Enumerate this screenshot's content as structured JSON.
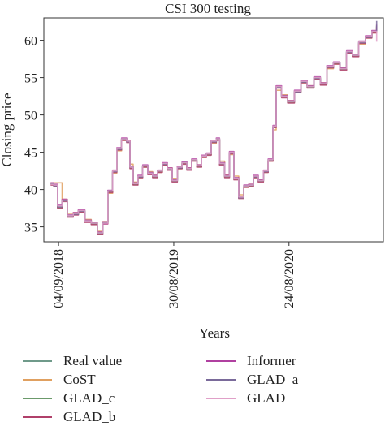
{
  "chart_data": {
    "type": "line",
    "title": "CSI 300 testing",
    "xlabel": "Years",
    "ylabel": "Closing price",
    "ylim": [
      33,
      63
    ],
    "yticks": [
      35,
      40,
      45,
      50,
      55,
      60
    ],
    "xlim": [
      "2018-07-20",
      "2021-06-15"
    ],
    "xticks": [
      "2018-09-04",
      "2019-08-30",
      "2020-08-24"
    ],
    "xtick_labels": [
      "04/09/2018",
      "30/08/2019",
      "24/08/2020"
    ],
    "grid": false,
    "legend_position": "bottom",
    "x": [
      "2018-08-10",
      "2018-08-20",
      "2018-09-01",
      "2018-09-15",
      "2018-10-01",
      "2018-10-20",
      "2018-11-05",
      "2018-11-25",
      "2018-12-15",
      "2019-01-03",
      "2019-01-20",
      "2019-02-05",
      "2019-02-20",
      "2019-03-05",
      "2019-03-20",
      "2019-04-05",
      "2019-04-15",
      "2019-04-25",
      "2019-05-10",
      "2019-05-25",
      "2019-06-10",
      "2019-06-25",
      "2019-07-10",
      "2019-07-25",
      "2019-08-10",
      "2019-08-25",
      "2019-09-10",
      "2019-09-25",
      "2019-10-10",
      "2019-10-25",
      "2019-11-10",
      "2019-11-25",
      "2019-12-10",
      "2019-12-25",
      "2020-01-10",
      "2020-01-20",
      "2020-02-05",
      "2020-02-20",
      "2020-03-05",
      "2020-03-20",
      "2020-04-05",
      "2020-04-20",
      "2020-05-05",
      "2020-05-20",
      "2020-06-05",
      "2020-06-20",
      "2020-07-05",
      "2020-07-15",
      "2020-08-01",
      "2020-08-20",
      "2020-09-10",
      "2020-09-30",
      "2020-10-20",
      "2020-11-10",
      "2020-11-30",
      "2020-12-20",
      "2021-01-10",
      "2021-01-30",
      "2021-02-20",
      "2021-03-10",
      "2021-03-30",
      "2021-04-20",
      "2021-05-10",
      "2021-05-25"
    ],
    "series": [
      {
        "name": "Real value",
        "color": "#6f9a8a",
        "values": [
          40.8,
          40.6,
          37.8,
          38.6,
          36.5,
          36.8,
          37.2,
          35.8,
          35.5,
          34.2,
          35.5,
          39.8,
          42.5,
          45.5,
          46.8,
          46.5,
          43.0,
          40.8,
          41.8,
          43.2,
          42.2,
          41.8,
          42.5,
          43.5,
          42.8,
          41.2,
          43.0,
          43.6,
          42.8,
          44.0,
          43.2,
          44.5,
          44.8,
          46.5,
          46.8,
          43.5,
          41.8,
          45.0,
          41.5,
          39.0,
          40.5,
          40.6,
          41.8,
          41.2,
          42.5,
          44.0,
          48.5,
          53.8,
          52.5,
          51.8,
          53.2,
          54.5,
          53.8,
          55.0,
          54.2,
          56.5,
          57.0,
          56.2,
          58.5,
          58.0,
          59.8,
          60.5,
          61.2,
          62.0
        ]
      },
      {
        "name": "CoST",
        "color": "#e0a060",
        "values": [
          40.9,
          40.9,
          40.9,
          38.7,
          36.8,
          36.9,
          37.0,
          36.0,
          35.6,
          34.4,
          35.4,
          39.5,
          42.2,
          45.2,
          46.6,
          46.6,
          43.4,
          41.0,
          41.6,
          43.0,
          42.4,
          41.9,
          42.3,
          43.3,
          42.9,
          41.5,
          42.8,
          43.5,
          42.9,
          43.9,
          43.3,
          44.3,
          44.7,
          46.2,
          46.7,
          43.8,
          42.0,
          44.7,
          41.8,
          39.3,
          40.3,
          40.7,
          41.6,
          41.3,
          42.3,
          43.8,
          48.0,
          53.3,
          52.7,
          51.9,
          53.0,
          54.3,
          53.9,
          54.8,
          54.3,
          56.2,
          56.8,
          56.3,
          58.2,
          58.1,
          59.5,
          60.3,
          61.0,
          61.7
        ]
      },
      {
        "name": "GLAD_c",
        "color": "#6b9a6b",
        "values": [
          40.7,
          40.5,
          37.6,
          38.5,
          36.4,
          36.7,
          37.1,
          35.7,
          35.4,
          34.1,
          35.6,
          39.7,
          42.4,
          45.4,
          46.7,
          46.4,
          42.9,
          40.7,
          41.7,
          43.1,
          42.1,
          41.7,
          42.4,
          43.4,
          42.7,
          41.1,
          42.9,
          43.5,
          42.7,
          43.9,
          43.1,
          44.4,
          44.7,
          46.4,
          46.7,
          43.4,
          41.7,
          44.9,
          41.4,
          38.9,
          40.4,
          40.5,
          41.7,
          41.1,
          42.4,
          43.9,
          48.4,
          53.7,
          52.4,
          51.7,
          53.1,
          54.4,
          53.7,
          54.9,
          54.1,
          56.4,
          56.9,
          56.1,
          58.4,
          57.9,
          59.7,
          60.4,
          61.1,
          61.9
        ]
      },
      {
        "name": "GLAD_b",
        "color": "#b0406a",
        "values": [
          40.6,
          40.4,
          37.5,
          38.4,
          36.3,
          36.6,
          37.0,
          35.6,
          35.3,
          34.0,
          35.7,
          39.6,
          42.3,
          45.3,
          46.6,
          46.3,
          42.8,
          40.6,
          41.6,
          43.0,
          42.0,
          41.6,
          42.3,
          43.3,
          42.6,
          41.0,
          42.8,
          43.4,
          42.6,
          43.8,
          43.0,
          44.3,
          44.6,
          46.3,
          46.6,
          43.3,
          41.6,
          44.8,
          41.3,
          38.8,
          40.3,
          40.4,
          41.6,
          41.0,
          42.3,
          43.8,
          48.3,
          53.6,
          52.3,
          51.6,
          53.0,
          54.3,
          53.6,
          54.8,
          54.0,
          56.3,
          56.8,
          56.0,
          58.3,
          57.8,
          59.6,
          60.3,
          61.0,
          61.8
        ]
      },
      {
        "name": "Informer",
        "color": "#b040a0",
        "values": [
          40.9,
          40.7,
          37.9,
          38.7,
          36.6,
          36.9,
          37.3,
          35.9,
          35.6,
          34.3,
          35.4,
          39.9,
          42.6,
          45.6,
          46.9,
          46.6,
          43.1,
          40.9,
          41.9,
          43.3,
          42.3,
          41.9,
          42.6,
          43.6,
          42.9,
          41.3,
          43.1,
          43.7,
          42.9,
          44.1,
          43.3,
          44.6,
          44.9,
          46.6,
          46.9,
          43.6,
          41.9,
          45.1,
          41.6,
          39.1,
          40.6,
          40.7,
          41.9,
          41.3,
          42.6,
          44.1,
          48.6,
          53.9,
          52.6,
          51.9,
          53.3,
          54.6,
          53.9,
          55.1,
          54.3,
          56.6,
          57.1,
          56.3,
          58.6,
          58.1,
          59.9,
          60.6,
          61.3,
          62.1
        ]
      },
      {
        "name": "GLAD_a",
        "color": "#7a6a9a",
        "values": [
          40.8,
          40.5,
          37.7,
          38.5,
          36.5,
          36.7,
          37.1,
          35.8,
          35.5,
          34.2,
          35.6,
          39.8,
          42.4,
          45.4,
          46.8,
          46.4,
          43.0,
          40.8,
          41.7,
          43.2,
          42.2,
          41.8,
          42.5,
          43.4,
          42.8,
          41.2,
          42.9,
          43.6,
          42.8,
          44.0,
          43.2,
          44.4,
          44.8,
          46.4,
          46.8,
          43.5,
          41.8,
          44.9,
          41.5,
          38.9,
          40.5,
          40.6,
          41.7,
          41.2,
          42.4,
          44.0,
          48.4,
          53.7,
          52.5,
          51.8,
          53.1,
          54.4,
          53.8,
          54.9,
          54.2,
          56.4,
          57.0,
          56.2,
          58.4,
          58.0,
          59.7,
          60.4,
          61.2,
          62.6
        ]
      },
      {
        "name": "GLAD",
        "color": "#e0a0c8",
        "values": [
          40.7,
          40.6,
          37.8,
          38.6,
          36.5,
          36.8,
          37.2,
          35.8,
          35.5,
          34.2,
          35.5,
          39.8,
          42.5,
          45.5,
          46.8,
          46.5,
          43.0,
          40.8,
          41.8,
          43.2,
          42.2,
          41.8,
          42.5,
          43.5,
          42.8,
          41.2,
          43.0,
          43.6,
          42.8,
          44.0,
          43.2,
          44.5,
          44.8,
          46.5,
          46.8,
          43.5,
          41.8,
          45.0,
          41.5,
          39.0,
          40.5,
          40.6,
          41.8,
          41.2,
          42.5,
          44.0,
          48.5,
          53.8,
          52.5,
          51.8,
          53.2,
          54.5,
          53.8,
          55.0,
          54.2,
          56.5,
          57.0,
          56.2,
          58.5,
          58.0,
          59.8,
          60.5,
          61.2,
          59.8
        ]
      }
    ]
  },
  "legend": {
    "left": [
      {
        "label": "Real value",
        "color": "#6f9a8a"
      },
      {
        "label": "CoST",
        "color": "#e0a060"
      },
      {
        "label": "GLAD_c",
        "color": "#6b9a6b"
      },
      {
        "label": "GLAD_b",
        "color": "#b0406a"
      }
    ],
    "right": [
      {
        "label": "Informer",
        "color": "#b040a0"
      },
      {
        "label": "GLAD_a",
        "color": "#7a6a9a"
      },
      {
        "label": "GLAD",
        "color": "#e0a0c8"
      }
    ]
  }
}
